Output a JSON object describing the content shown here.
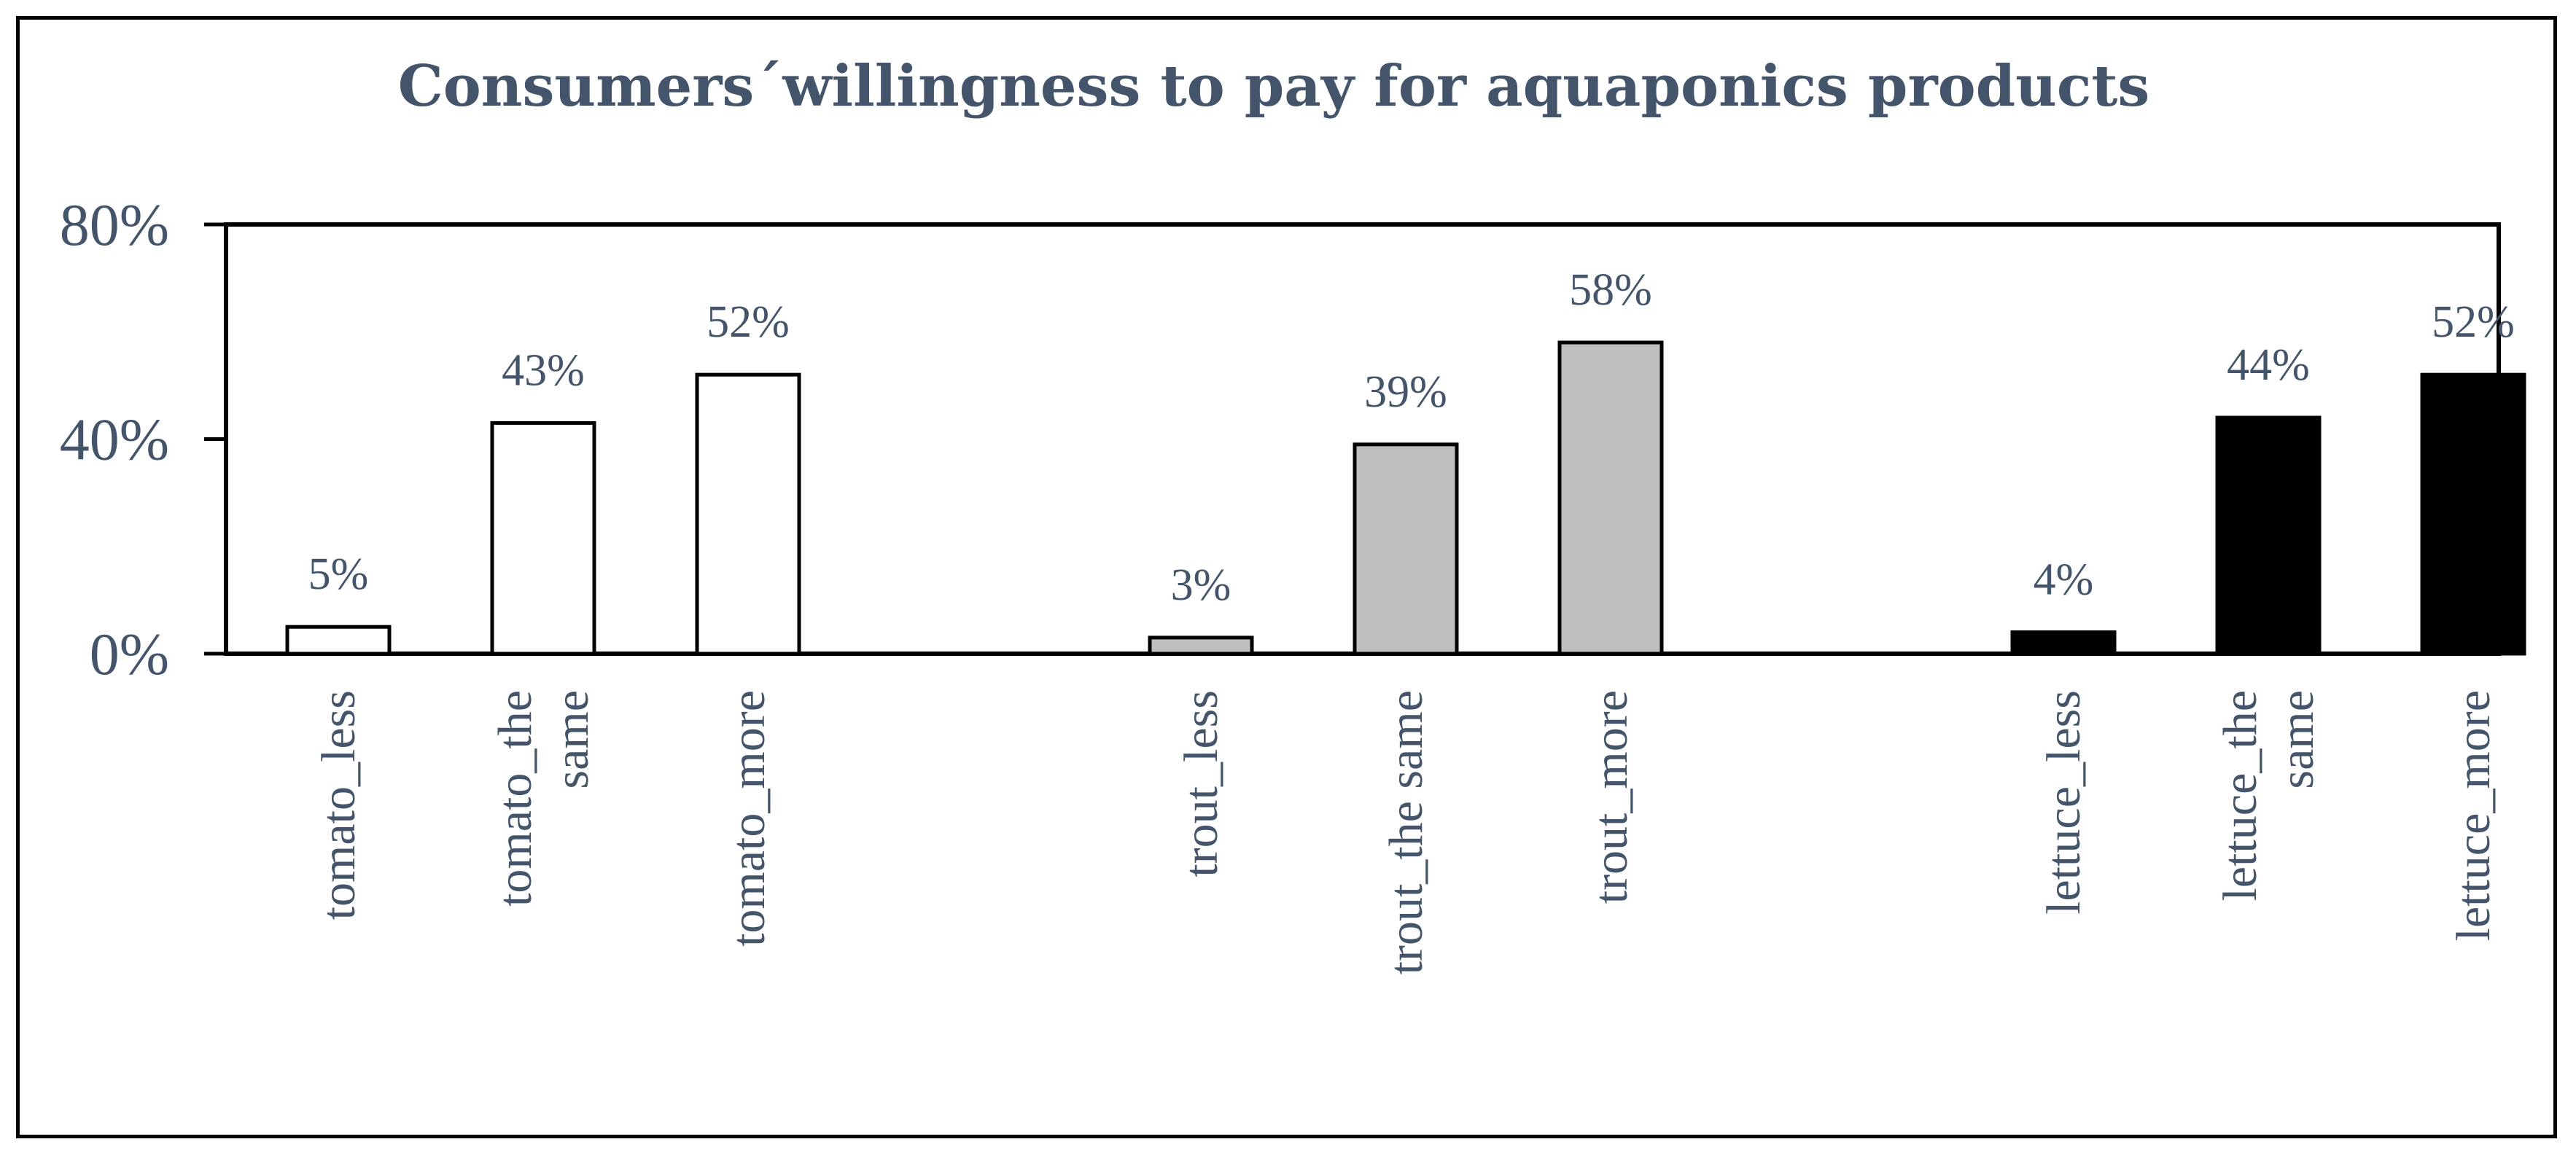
{
  "chart_data": {
    "type": "bar",
    "title": "Consumers´willingness to pay for aquaponics products",
    "xlabel": "",
    "ylabel": "",
    "ylim": [
      0,
      80
    ],
    "y_ticks": [
      "0%",
      "40%",
      "80%"
    ],
    "grid": false,
    "legend": "none",
    "categories": [
      [
        "tomato_less"
      ],
      [
        "tomato_the",
        "same"
      ],
      [
        "tomato_more"
      ],
      [
        "trout_less"
      ],
      [
        "trout_the same"
      ],
      [
        "trout_more"
      ],
      [
        "lettuce_less"
      ],
      [
        "lettuce_the",
        "same"
      ],
      [
        "lettuce_more"
      ]
    ],
    "values": [
      5,
      43,
      52,
      3,
      39,
      58,
      4,
      44,
      52
    ],
    "data_labels": [
      "5%",
      "43%",
      "52%",
      "3%",
      "39%",
      "58%",
      "4%",
      "44%",
      "52%"
    ],
    "groups": [
      {
        "name": "tomato",
        "color": "#ffffff"
      },
      {
        "name": "trout",
        "color": "#bfbfbf"
      },
      {
        "name": "lettuce",
        "color": "#000000"
      }
    ],
    "bar_group_index": [
      0,
      0,
      0,
      1,
      1,
      1,
      2,
      2,
      2
    ],
    "text_color": "#44546a"
  }
}
